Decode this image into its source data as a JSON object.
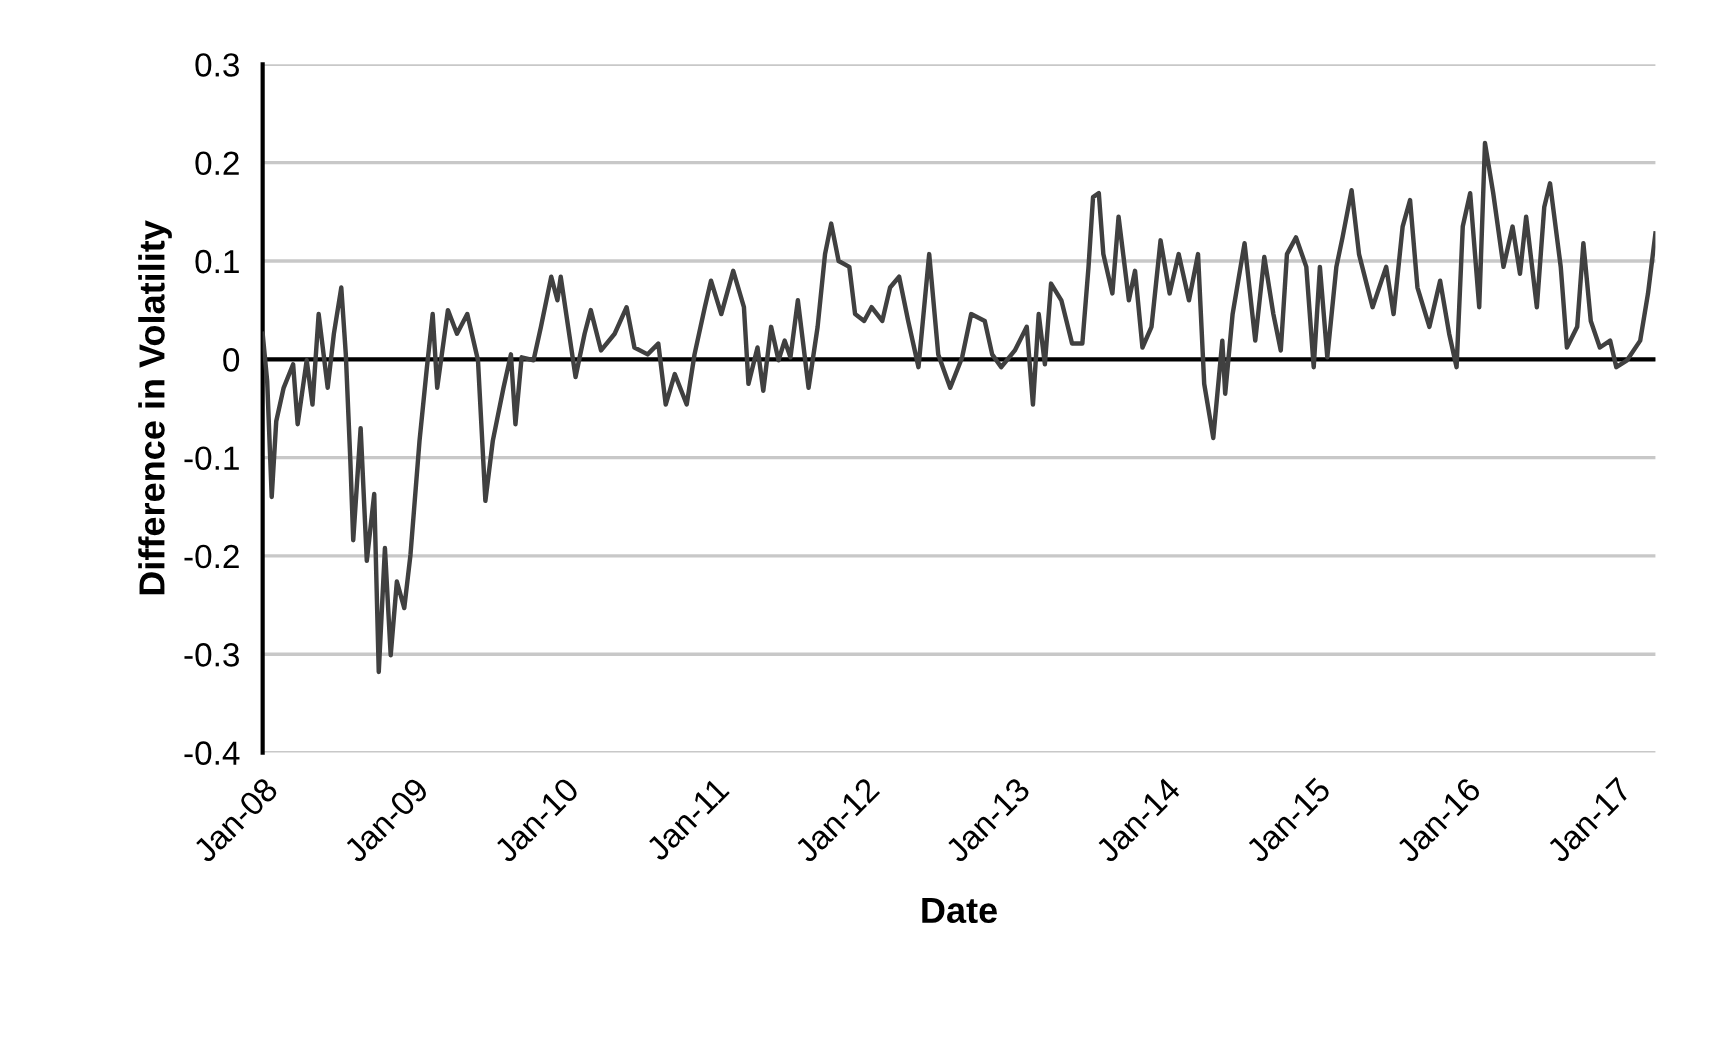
{
  "chart_data": {
    "type": "line",
    "xlabel": "Date",
    "ylabel": "Difference in Volatility",
    "xlim": [
      "2008-01-01",
      "2017-04-06"
    ],
    "ylim": [
      -0.4,
      0.3
    ],
    "xticks": [
      {
        "value": "2008-01-01",
        "label": "Jan-08"
      },
      {
        "value": "2009-01-01",
        "label": "Jan-09"
      },
      {
        "value": "2010-01-01",
        "label": "Jan-10"
      },
      {
        "value": "2011-01-01",
        "label": "Jan-11"
      },
      {
        "value": "2012-01-01",
        "label": "Jan-12"
      },
      {
        "value": "2013-01-01",
        "label": "Jan-13"
      },
      {
        "value": "2014-01-01",
        "label": "Jan-14"
      },
      {
        "value": "2015-01-01",
        "label": "Jan-15"
      },
      {
        "value": "2016-01-01",
        "label": "Jan-16"
      },
      {
        "value": "2017-01-01",
        "label": "Jan-17"
      }
    ],
    "yticks": [
      -0.4,
      -0.3,
      -0.2,
      -0.1,
      {
        "value": 0,
        "label": "0"
      },
      0.1,
      0.2,
      0.3
    ],
    "grid": "y",
    "marker": "none",
    "line_style": "solid",
    "ref_lines": [
      {
        "axis": "y",
        "value": 0,
        "color": "#000000"
      }
    ],
    "series": [
      {
        "color": "#404040",
        "x": [
          "2008-01-01",
          "2008-01-12",
          "2008-01-23",
          "2008-02-03",
          "2008-02-21",
          "2008-03-15",
          "2008-03-26",
          "2008-04-17",
          "2008-05-01",
          "2008-05-16",
          "2008-06-07",
          "2008-06-22",
          "2008-07-10",
          "2008-07-21",
          "2008-08-01",
          "2008-08-08",
          "2008-08-26",
          "2008-09-10",
          "2008-09-28",
          "2008-10-09",
          "2008-10-24",
          "2008-11-07",
          "2008-11-22",
          "2008-12-10",
          "2008-12-25",
          "2009-01-16",
          "2009-02-03",
          "2009-02-17",
          "2009-02-28",
          "2009-03-26",
          "2009-04-17",
          "2009-05-12",
          "2009-06-07",
          "2009-06-25",
          "2009-07-13",
          "2009-08-08",
          "2009-08-26",
          "2009-09-06",
          "2009-09-21",
          "2009-10-20",
          "2009-11-07",
          "2009-12-02",
          "2009-12-17",
          "2009-12-25",
          "2010-01-12",
          "2010-01-30",
          "2010-02-21",
          "2010-03-08",
          "2010-04-02",
          "2010-05-05",
          "2010-06-03",
          "2010-06-22",
          "2010-07-24",
          "2010-08-19",
          "2010-09-06",
          "2010-09-28",
          "2010-10-27",
          "2010-11-15",
          "2010-12-10",
          "2010-12-25",
          "2011-01-19",
          "2011-02-17",
          "2011-03-15",
          "2011-03-26",
          "2011-04-17",
          "2011-05-01",
          "2011-05-20",
          "2011-06-07",
          "2011-06-22",
          "2011-07-06",
          "2011-07-24",
          "2011-08-19",
          "2011-09-10",
          "2011-09-28",
          "2011-10-13",
          "2011-10-31",
          "2011-11-26",
          "2011-12-10",
          "2012-01-01",
          "2012-01-19",
          "2012-02-14",
          "2012-03-04",
          "2012-03-26",
          "2012-04-17",
          "2012-05-12",
          "2012-06-07",
          "2012-06-29",
          "2012-07-28",
          "2012-08-26",
          "2012-09-17",
          "2012-10-20",
          "2012-11-07",
          "2012-11-29",
          "2013-01-01",
          "2013-01-30",
          "2013-02-14",
          "2013-02-28",
          "2013-03-15",
          "2013-03-30",
          "2013-04-24",
          "2013-05-20",
          "2013-06-14",
          "2013-06-29",
          "2013-07-10",
          "2013-07-24",
          "2013-08-04",
          "2013-08-26",
          "2013-09-10",
          "2013-10-05",
          "2013-10-20",
          "2013-11-07",
          "2013-11-29",
          "2013-12-21",
          "2014-01-12",
          "2014-02-03",
          "2014-02-28",
          "2014-03-22",
          "2014-04-06",
          "2014-04-28",
          "2014-05-20",
          "2014-05-27",
          "2014-06-14",
          "2014-07-13",
          "2014-08-08",
          "2014-08-30",
          "2014-09-21",
          "2014-10-09",
          "2014-10-24",
          "2014-11-15",
          "2014-12-10",
          "2014-12-28",
          "2015-01-12",
          "2015-01-30",
          "2015-02-21",
          "2015-03-08",
          "2015-03-30",
          "2015-04-17",
          "2015-05-20",
          "2015-06-22",
          "2015-07-10",
          "2015-08-01",
          "2015-08-19",
          "2015-09-06",
          "2015-10-05",
          "2015-10-31",
          "2015-11-22",
          "2015-12-10",
          "2015-12-25",
          "2016-01-12",
          "2016-02-03",
          "2016-02-17",
          "2016-03-08",
          "2016-04-02",
          "2016-04-24",
          "2016-05-12",
          "2016-05-27",
          "2016-06-22",
          "2016-07-10",
          "2016-07-24",
          "2016-08-19",
          "2016-09-03",
          "2016-09-28",
          "2016-10-13",
          "2016-10-31",
          "2016-11-22",
          "2016-12-17",
          "2017-01-01",
          "2017-01-27",
          "2017-02-28",
          "2017-03-19",
          "2017-04-06"
        ],
        "values": [
          0.026,
          -0.022,
          -0.14,
          -0.063,
          -0.029,
          -0.005,
          -0.066,
          -0.001,
          -0.046,
          0.046,
          -0.029,
          0.026,
          0.073,
          0.005,
          -0.103,
          -0.184,
          -0.07,
          -0.205,
          -0.137,
          -0.318,
          -0.192,
          -0.301,
          -0.226,
          -0.253,
          -0.199,
          -0.083,
          -0.008,
          0.046,
          -0.029,
          0.05,
          0.026,
          0.046,
          -0.001,
          -0.144,
          -0.083,
          -0.029,
          0.005,
          -0.066,
          0.002,
          -0.001,
          0.033,
          0.084,
          0.06,
          0.084,
          0.033,
          -0.018,
          0.026,
          0.05,
          0.009,
          0.026,
          0.053,
          0.012,
          0.005,
          0.016,
          -0.046,
          -0.015,
          -0.046,
          0.005,
          0.053,
          0.08,
          0.046,
          0.09,
          0.053,
          -0.025,
          0.012,
          -0.032,
          0.033,
          -0.001,
          0.019,
          0.002,
          0.06,
          -0.029,
          0.033,
          0.107,
          0.138,
          0.1,
          0.094,
          0.046,
          0.039,
          0.053,
          0.039,
          0.073,
          0.084,
          0.039,
          -0.008,
          0.107,
          0.005,
          -0.029,
          0.002,
          0.046,
          0.039,
          0.005,
          -0.008,
          0.009,
          0.033,
          -0.046,
          0.046,
          -0.005,
          0.077,
          0.06,
          0.016,
          0.016,
          0.094,
          0.165,
          0.169,
          0.107,
          0.067,
          0.145,
          0.06,
          0.09,
          0.012,
          0.033,
          0.121,
          0.067,
          0.107,
          0.06,
          0.107,
          -0.025,
          -0.08,
          0.019,
          -0.035,
          0.046,
          0.118,
          0.019,
          0.104,
          0.046,
          0.009,
          0.107,
          0.124,
          0.094,
          -0.008,
          0.094,
          0.002,
          0.094,
          0.124,
          0.172,
          0.107,
          0.053,
          0.094,
          0.046,
          0.135,
          0.162,
          0.073,
          0.033,
          0.08,
          0.026,
          -0.008,
          0.135,
          0.169,
          0.053,
          0.22,
          0.169,
          0.094,
          0.135,
          0.087,
          0.145,
          0.053,
          0.155,
          0.179,
          0.094,
          0.012,
          0.033,
          0.118,
          0.039,
          0.012,
          0.019,
          -0.008,
          -0.001,
          0.019,
          0.067,
          0.128
        ]
      }
    ]
  }
}
